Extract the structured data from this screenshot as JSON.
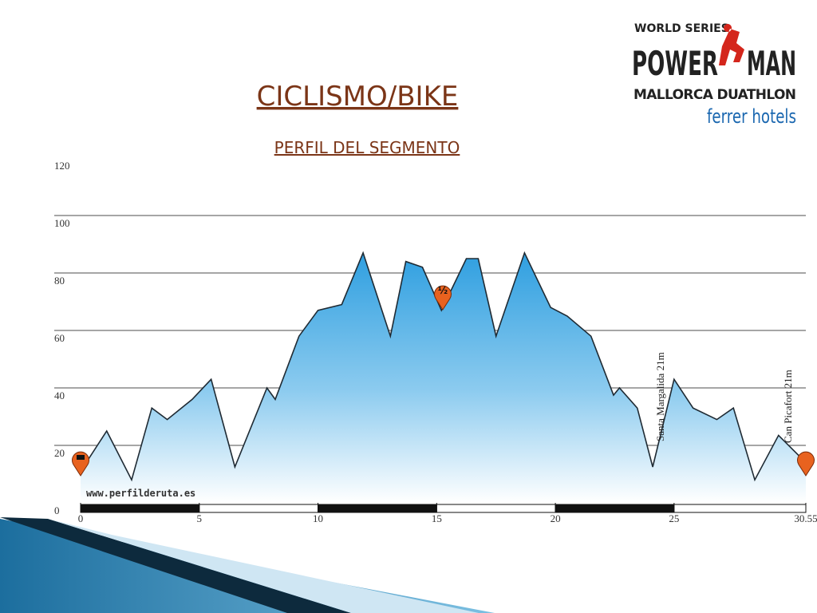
{
  "chart_data": {
    "type": "area",
    "title": "CICLISMO/BIKE",
    "subtitle": "PERFIL DEL SEGMENTO",
    "x": [
      0,
      1.1,
      2.15,
      3,
      3.65,
      4.7,
      5.5,
      6.5,
      7.85,
      8.2,
      9.2,
      10,
      11,
      11.9,
      13.05,
      13.7,
      14.4,
      15.2,
      16.25,
      16.75,
      17.5,
      18.7,
      19.8,
      20.5,
      21.5,
      22.45,
      22.7,
      23.45,
      24.1,
      25,
      25.8,
      26.8,
      27.5,
      28.4,
      29.4,
      30.55
    ],
    "values": [
      11,
      25,
      8,
      33,
      29,
      36,
      43,
      12.5,
      40,
      36,
      58,
      67,
      69,
      87,
      58,
      84,
      82,
      67,
      85,
      85,
      58,
      87,
      68,
      65,
      58,
      37.5,
      40,
      33,
      12.5,
      43,
      33,
      29,
      33,
      8,
      23.5,
      14
    ],
    "color": "#1f2a33",
    "xlim": [
      0,
      30.55
    ],
    "ylim": [
      0,
      120
    ],
    "xticks": [
      0,
      5,
      10,
      15,
      20,
      25,
      30.55
    ],
    "yticks": [
      0,
      20,
      40,
      60,
      80,
      100,
      120
    ],
    "grid": true,
    "annotations": [
      "Santa Margalida 21m",
      "Can Picafort 21m"
    ],
    "midpoint_label": "½",
    "watermark": "www.perfilderuta.es"
  },
  "logo": {
    "series": "WORLD SERIES",
    "word1": "POWER",
    "word2": "MAN",
    "event": "MALLORCA DUATHLON",
    "sponsor": "ferrer hotels"
  }
}
